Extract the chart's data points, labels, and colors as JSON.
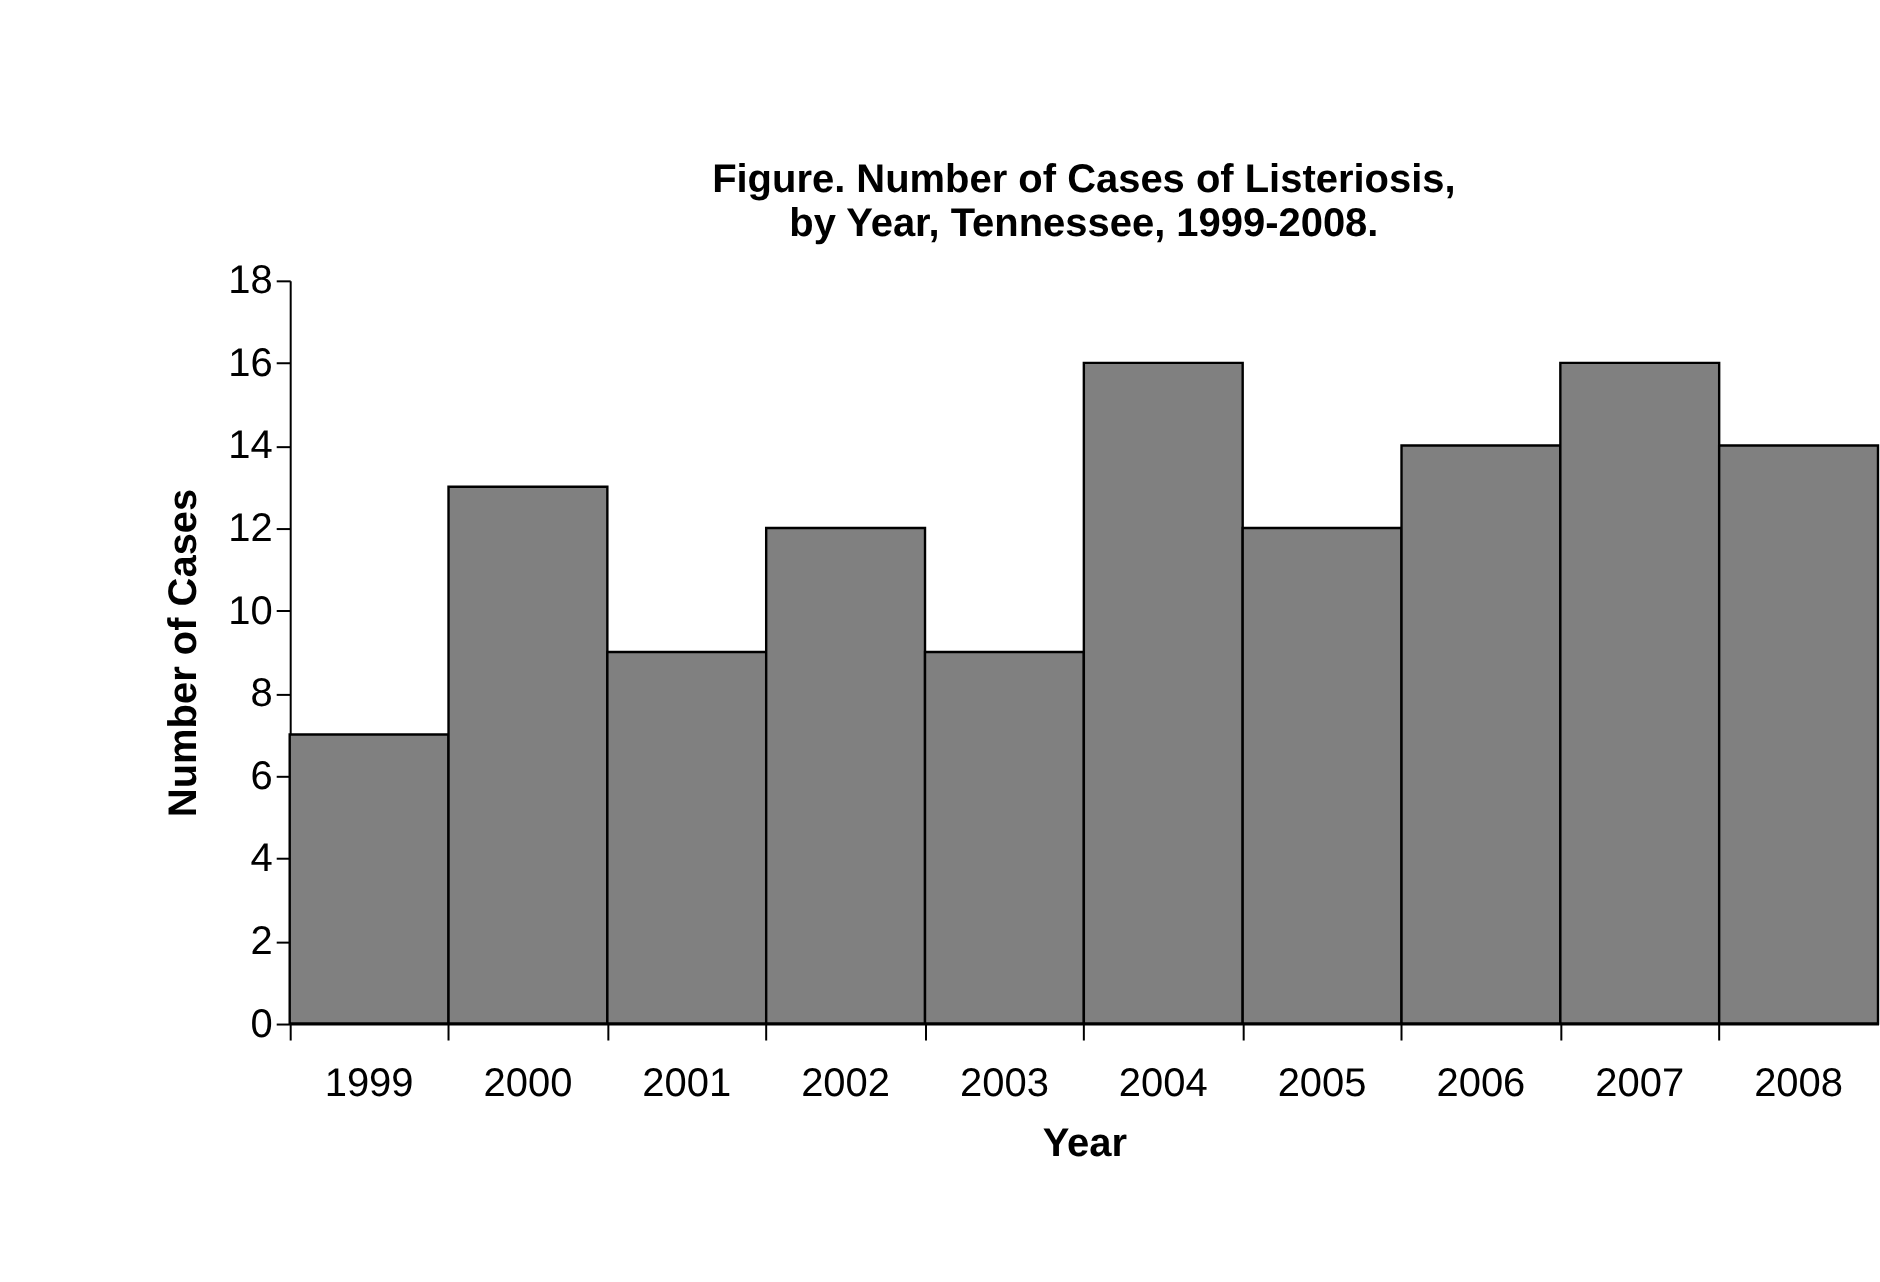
{
  "chart_data": {
    "type": "bar",
    "title": [
      "Figure. Number of Cases of Listeriosis,",
      "by Year, Tennessee, 1999-2008."
    ],
    "xlabel": "Year",
    "ylabel": "Number of Cases",
    "categories": [
      "1999",
      "2000",
      "2001",
      "2002",
      "2003",
      "2004",
      "2005",
      "2006",
      "2007",
      "2008"
    ],
    "values": [
      7,
      13,
      9,
      12,
      9,
      16,
      12,
      14,
      16,
      14
    ],
    "color": "#808080",
    "ylim": [
      0,
      18
    ],
    "yticks": [
      0,
      2,
      4,
      6,
      8,
      10,
      12,
      14,
      16,
      18
    ],
    "grid": false
  }
}
